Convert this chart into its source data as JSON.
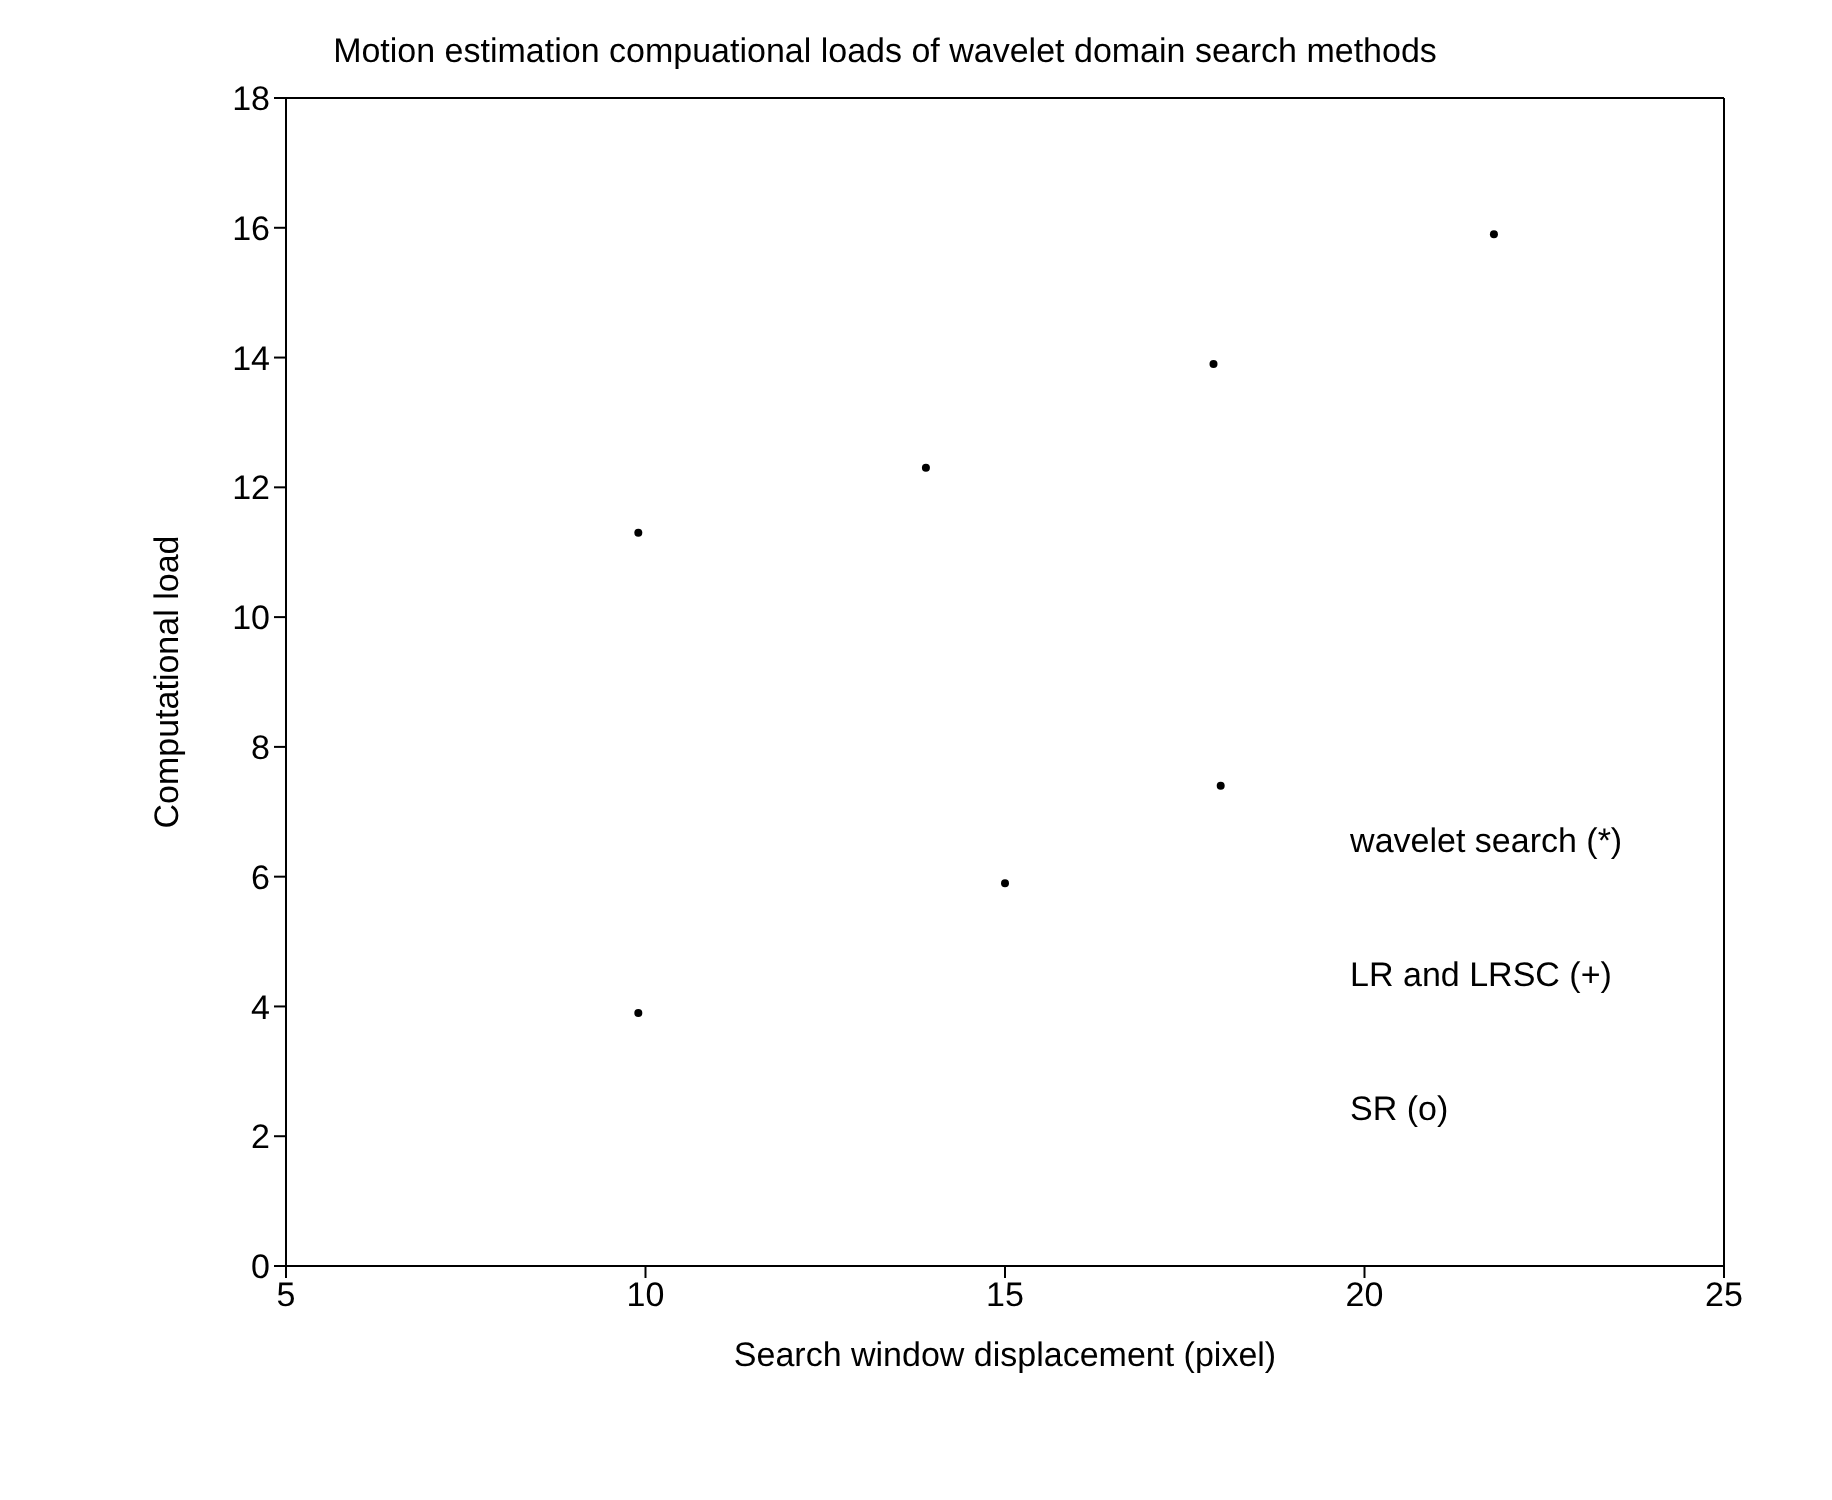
{
  "chart_data": {
    "type": "scatter",
    "title": "Motion estimation compuational loads of wavelet domain search methods",
    "xlabel": "Search window displacement (pixel)",
    "ylabel": "Computational load",
    "x": [
      9.9,
      13.9,
      17.9,
      21.8,
      18,
      15,
      9.9
    ],
    "series": [
      {
        "color": "#000000",
        "values": [
          11.3,
          12.3,
          13.9,
          15.9,
          7.4,
          5.9,
          3.9
        ]
      }
    ],
    "xlim": [
      5,
      25
    ],
    "xticks": [
      5,
      10,
      15,
      20,
      25
    ],
    "ylim": [
      0,
      18
    ],
    "yticks": [
      0,
      2,
      4,
      6,
      8,
      10,
      12,
      14,
      16,
      18
    ],
    "marker": "circle",
    "annotations": [
      "wavelet search (*)",
      "LR and LRSC (+)",
      "SR (o)"
    ]
  }
}
